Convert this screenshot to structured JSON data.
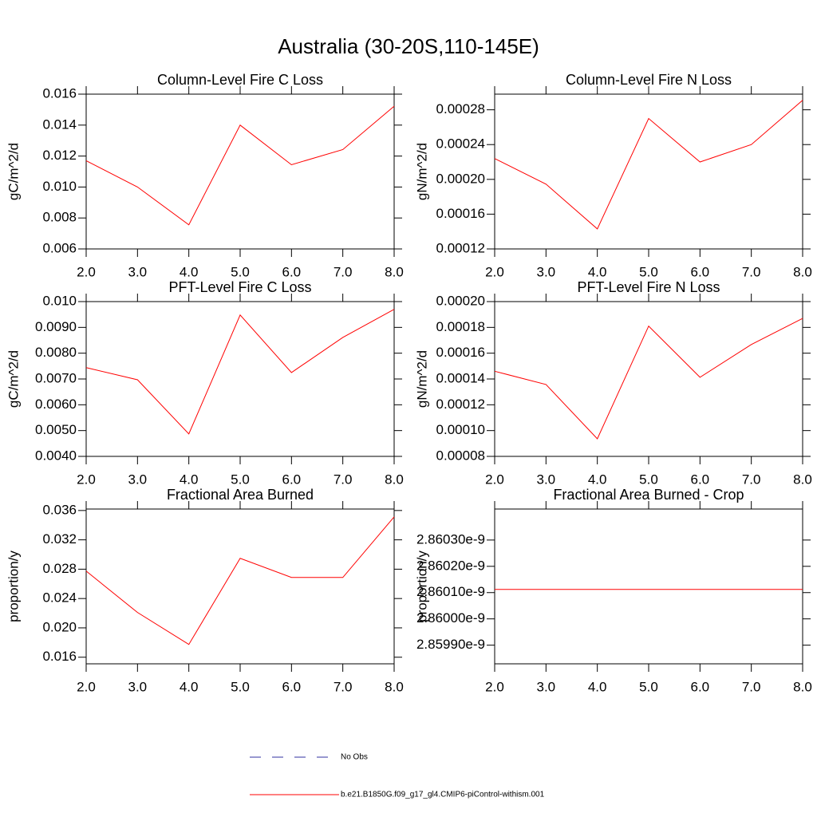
{
  "title": "Australia (30-20S,110-145E)",
  "legend": [
    {
      "name": "No Obs",
      "color": "#3030a0",
      "dashed": true
    },
    {
      "name": "b.e21.B1850G.f09_g17_gl4.CMIP6-piControl-withism.001",
      "color": "#ff0000",
      "dashed": false
    }
  ],
  "chart_data": [
    {
      "type": "line",
      "title": "Column-Level Fire C Loss",
      "y_label": "gC/m^2/d",
      "x": [
        2,
        3,
        4,
        5,
        6,
        7,
        8
      ],
      "xlim": [
        2,
        8
      ],
      "xticks": [
        {
          "value": 2,
          "label": "2.0"
        },
        {
          "value": 3,
          "label": "3.0"
        },
        {
          "value": 4,
          "label": "4.0"
        },
        {
          "value": 5,
          "label": "5.0"
        },
        {
          "value": 6,
          "label": "6.0"
        },
        {
          "value": 7,
          "label": "7.0"
        },
        {
          "value": 8,
          "label": "8.0"
        }
      ],
      "ylim": [
        0.006,
        0.016
      ],
      "yticks": [
        {
          "value": 0.006,
          "label": "0.006"
        },
        0.008,
        {
          "value": 0.01,
          "label": "0.010"
        },
        0.012,
        0.014,
        {
          "value": 0.016,
          "label": "0.016"
        }
      ],
      "series": [
        {
          "color": "#ff0000",
          "values": [
            0.0117,
            0.01,
            0.00756,
            0.014,
            0.01144,
            0.01242,
            0.01522
          ]
        }
      ]
    },
    {
      "type": "line",
      "title": "Column-Level Fire N Loss",
      "y_label": "gN/m^2/d",
      "x": [
        2,
        3,
        4,
        5,
        6,
        7,
        8
      ],
      "xlim": [
        2,
        8
      ],
      "xticks": [
        {
          "value": 2,
          "label": "2.0"
        },
        {
          "value": 3,
          "label": "3.0"
        },
        {
          "value": 4,
          "label": "4.0"
        },
        {
          "value": 5,
          "label": "5.0"
        },
        {
          "value": 6,
          "label": "6.0"
        },
        {
          "value": 7,
          "label": "7.0"
        },
        {
          "value": 8,
          "label": "8.0"
        }
      ],
      "ylim": [
        0.00012,
        0.000298
      ],
      "yticks": [
        0.00012,
        0.00016,
        {
          "value": 0.0002,
          "label": "0.00020"
        },
        0.00024,
        0.00028
      ],
      "series": [
        {
          "color": "#ff0000",
          "values": [
            0.000224,
            0.0001945,
            0.000143,
            0.00027,
            0.00022,
            0.00024,
            0.000291
          ]
        }
      ]
    },
    {
      "type": "line",
      "title": "PFT-Level Fire C Loss",
      "y_label": "gC/m^2/d",
      "x": [
        2,
        3,
        4,
        5,
        6,
        7,
        8
      ],
      "xlim": [
        2,
        8
      ],
      "xticks": [
        {
          "value": 2,
          "label": "2.0"
        },
        {
          "value": 3,
          "label": "3.0"
        },
        {
          "value": 4,
          "label": "4.0"
        },
        {
          "value": 5,
          "label": "5.0"
        },
        {
          "value": 6,
          "label": "6.0"
        },
        {
          "value": 7,
          "label": "7.0"
        },
        {
          "value": 8,
          "label": "8.0"
        }
      ],
      "ylim": [
        0.004,
        0.01
      ],
      "yticks": [
        {
          "value": 0.004,
          "label": "0.0040"
        },
        {
          "value": 0.005,
          "label": "0.0050"
        },
        {
          "value": 0.006,
          "label": "0.0060"
        },
        {
          "value": 0.007,
          "label": "0.0070"
        },
        {
          "value": 0.008,
          "label": "0.0080"
        },
        {
          "value": 0.009,
          "label": "0.0090"
        },
        {
          "value": 0.01,
          "label": "0.010"
        }
      ],
      "series": [
        {
          "color": "#ff0000",
          "values": [
            0.00744,
            0.00697,
            0.00487,
            0.00948,
            0.00725,
            0.00861,
            0.0097
          ]
        }
      ]
    },
    {
      "type": "line",
      "title": "PFT-Level Fire N Loss",
      "y_label": "gN/m^2/d",
      "x": [
        2,
        3,
        4,
        5,
        6,
        7,
        8
      ],
      "xlim": [
        2,
        8
      ],
      "xticks": [
        {
          "value": 2,
          "label": "2.0"
        },
        {
          "value": 3,
          "label": "3.0"
        },
        {
          "value": 4,
          "label": "4.0"
        },
        {
          "value": 5,
          "label": "5.0"
        },
        {
          "value": 6,
          "label": "6.0"
        },
        {
          "value": 7,
          "label": "7.0"
        },
        {
          "value": 8,
          "label": "8.0"
        }
      ],
      "ylim": [
        8e-05,
        0.0002
      ],
      "yticks": [
        8e-05,
        {
          "value": 0.0001,
          "label": "0.00010"
        },
        0.00012,
        0.00014,
        0.00016,
        0.00018,
        {
          "value": 0.0002,
          "label": "0.00020"
        }
      ],
      "series": [
        {
          "color": "#ff0000",
          "values": [
            0.000146,
            0.0001357,
            9.36e-05,
            0.000181,
            0.0001413,
            0.0001667,
            0.000187
          ]
        }
      ]
    },
    {
      "type": "line",
      "title": "Fractional Area Burned",
      "y_label": "proportion/y",
      "x": [
        2,
        3,
        4,
        5,
        6,
        7,
        8
      ],
      "xlim": [
        2,
        8
      ],
      "xticks": [
        {
          "value": 2,
          "label": "2.0"
        },
        {
          "value": 3,
          "label": "3.0"
        },
        {
          "value": 4,
          "label": "4.0"
        },
        {
          "value": 5,
          "label": "5.0"
        },
        {
          "value": 6,
          "label": "6.0"
        },
        {
          "value": 7,
          "label": "7.0"
        },
        {
          "value": 8,
          "label": "8.0"
        }
      ],
      "ylim": [
        0.0151,
        0.0362
      ],
      "yticks": [
        0.016,
        {
          "value": 0.02,
          "label": "0.020"
        },
        0.024,
        0.028,
        0.032,
        0.036
      ],
      "series": [
        {
          "color": "#ff0000",
          "values": [
            0.02774,
            0.0221,
            0.01774,
            0.02948,
            0.02687,
            0.02687,
            0.03513
          ]
        }
      ]
    },
    {
      "type": "line",
      "title": "Fractional Area Burned - Crop",
      "y_label": "proportion/y",
      "x": [
        2,
        3,
        4,
        5,
        6,
        7,
        8
      ],
      "xlim": [
        2,
        8
      ],
      "xticks": [
        {
          "value": 2,
          "label": "2.0"
        },
        {
          "value": 3,
          "label": "3.0"
        },
        {
          "value": 4,
          "label": "4.0"
        },
        {
          "value": 5,
          "label": "5.0"
        },
        {
          "value": 6,
          "label": "6.0"
        },
        {
          "value": 7,
          "label": "7.0"
        },
        {
          "value": 8,
          "label": "8.0"
        }
      ],
      "ylim": [
        2.859829e-09,
        2.860418e-09
      ],
      "yticks": [
        {
          "value": 2.8599e-09,
          "label": "2.85990e-9"
        },
        {
          "value": 2.86e-09,
          "label": "2.86000e-9"
        },
        {
          "value": 2.8601e-09,
          "label": "2.86010e-9"
        },
        {
          "value": 2.8602e-09,
          "label": "2.86020e-9"
        },
        {
          "value": 2.8603e-09,
          "label": "2.86030e-9"
        }
      ],
      "series": [
        {
          "color": "#ff0000",
          "values": [
            2.860112e-09,
            2.860112e-09,
            2.860112e-09,
            2.860112e-09,
            2.860112e-09,
            2.860112e-09,
            2.860112e-09
          ]
        }
      ]
    }
  ]
}
